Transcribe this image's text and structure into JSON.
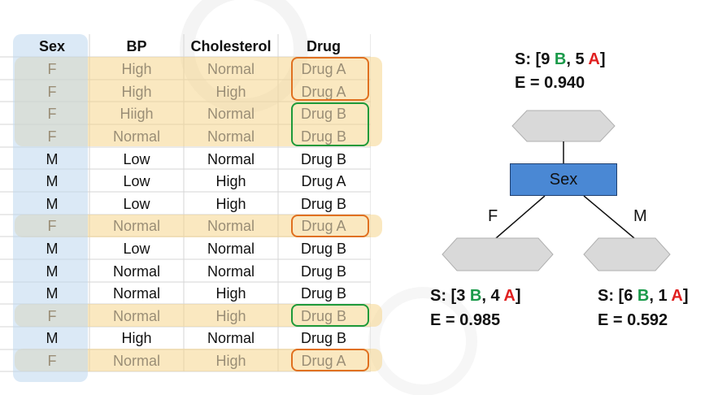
{
  "table": {
    "headers": [
      "Sex",
      "BP",
      "Cholesterol",
      "Drug"
    ],
    "rows": [
      [
        "F",
        "High",
        "Normal",
        "Drug A"
      ],
      [
        "F",
        "High",
        "High",
        "Drug A"
      ],
      [
        "F",
        "Hiigh",
        "Normal",
        "Drug B"
      ],
      [
        "F",
        "Normal",
        "Normal",
        "Drug B"
      ],
      [
        "M",
        "Low",
        "Normal",
        "Drug B"
      ],
      [
        "M",
        "Low",
        "High",
        "Drug A"
      ],
      [
        "M",
        "Low",
        "High",
        "Drug B"
      ],
      [
        "F",
        "Normal",
        "Normal",
        "Drug A"
      ],
      [
        "M",
        "Low",
        "Normal",
        "Drug B"
      ],
      [
        "M",
        "Normal",
        "Normal",
        "Drug B"
      ],
      [
        "M",
        "Normal",
        "High",
        "Drug B"
      ],
      [
        "F",
        "Normal",
        "High",
        "Drug B"
      ],
      [
        "M",
        "High",
        "Normal",
        "Drug B"
      ],
      [
        "F",
        "Normal",
        "High",
        "Drug A"
      ]
    ],
    "colors": {
      "highlight": "#f6d68c",
      "sex_column": "#bed7ee",
      "drug_a_outline": "#e07020",
      "drug_b_outline": "#1e9a3a"
    }
  },
  "tree": {
    "root": {
      "s_prefix": "S: [9 ",
      "b_letter": "B",
      "sep": ", 5 ",
      "a_letter": "A",
      "suffix": "]",
      "entropy": "E = 0.940"
    },
    "split_node": "Sex",
    "left_branch": "F",
    "right_branch": "M",
    "left_leaf": {
      "s_prefix": "S: [3 ",
      "b_letter": "B",
      "sep": ", 4 ",
      "a_letter": "A",
      "suffix": "]",
      "entropy": "E = 0.985"
    },
    "right_leaf": {
      "s_prefix": "S: [6 ",
      "b_letter": "B",
      "sep": ", 1 ",
      "a_letter": "A",
      "suffix": "]",
      "entropy": "E = 0.592"
    },
    "colors": {
      "node_fill": "#d9d9d9",
      "sex_fill": "#4a88d4",
      "b_color": "#1a9a4a",
      "a_color": "#e02020"
    }
  }
}
